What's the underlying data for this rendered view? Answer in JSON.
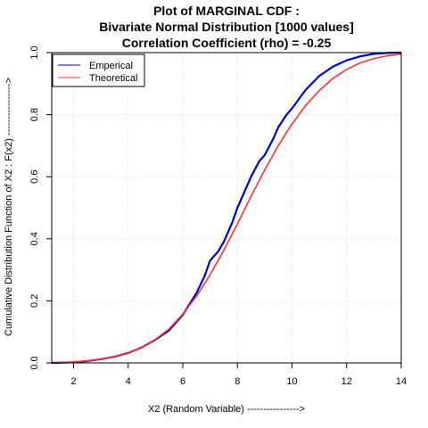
{
  "chart_data": {
    "type": "line",
    "title_lines": [
      "Plot of MARGINAL CDF :",
      "Bivariate Normal Distribution [1000 values]",
      "Correlation Coefficient (rho) =  -0.25"
    ],
    "xlabel": "X2 (Random Variable) ---------------->",
    "ylabel": "Cumulative Distribution Function of X2 : F(x2) ---------------->",
    "xlim": [
      1.2,
      14
    ],
    "ylim": [
      0,
      1
    ],
    "x_ticks": [
      2,
      4,
      6,
      8,
      10,
      12,
      14
    ],
    "y_ticks": [
      0.0,
      0.2,
      0.4,
      0.6,
      0.8,
      1.0
    ],
    "x_tick_labels": [
      "2",
      "4",
      "6",
      "8",
      "10",
      "12",
      "14"
    ],
    "y_tick_labels": [
      "0.0",
      "0.2",
      "0.4",
      "0.6",
      "0.8",
      "1.0"
    ],
    "grid": true,
    "legend_position": "top-left",
    "series": [
      {
        "name": "Emperical",
        "color": "#0000cc",
        "x": [
          1.2,
          2.0,
          2.5,
          3.0,
          3.5,
          4.0,
          4.5,
          5.0,
          5.5,
          6.0,
          6.5,
          6.8,
          7.0,
          7.3,
          7.5,
          7.8,
          8.0,
          8.3,
          8.5,
          8.8,
          9.0,
          9.3,
          9.5,
          9.8,
          10.0,
          10.5,
          11.0,
          11.5,
          12.0,
          12.5,
          13.0,
          13.5,
          14.0
        ],
        "y": [
          0.0,
          0.002,
          0.006,
          0.012,
          0.02,
          0.032,
          0.05,
          0.075,
          0.105,
          0.155,
          0.225,
          0.28,
          0.33,
          0.36,
          0.39,
          0.45,
          0.5,
          0.56,
          0.6,
          0.65,
          0.67,
          0.72,
          0.76,
          0.8,
          0.82,
          0.88,
          0.925,
          0.955,
          0.975,
          0.988,
          0.996,
          0.999,
          1.0
        ]
      },
      {
        "name": "Theoretical",
        "color": "#ff3333",
        "x": [
          1.2,
          2.0,
          2.5,
          3.0,
          3.5,
          4.0,
          4.5,
          5.0,
          5.5,
          6.0,
          6.5,
          7.0,
          7.5,
          8.0,
          8.5,
          9.0,
          9.5,
          10.0,
          10.5,
          11.0,
          11.5,
          12.0,
          12.5,
          13.0,
          13.5,
          14.0
        ],
        "y": [
          0.0,
          0.003,
          0.007,
          0.012,
          0.02,
          0.032,
          0.05,
          0.076,
          0.11,
          0.157,
          0.215,
          0.284,
          0.363,
          0.448,
          0.537,
          0.622,
          0.701,
          0.77,
          0.83,
          0.878,
          0.917,
          0.946,
          0.967,
          0.981,
          0.99,
          0.995
        ]
      }
    ]
  }
}
